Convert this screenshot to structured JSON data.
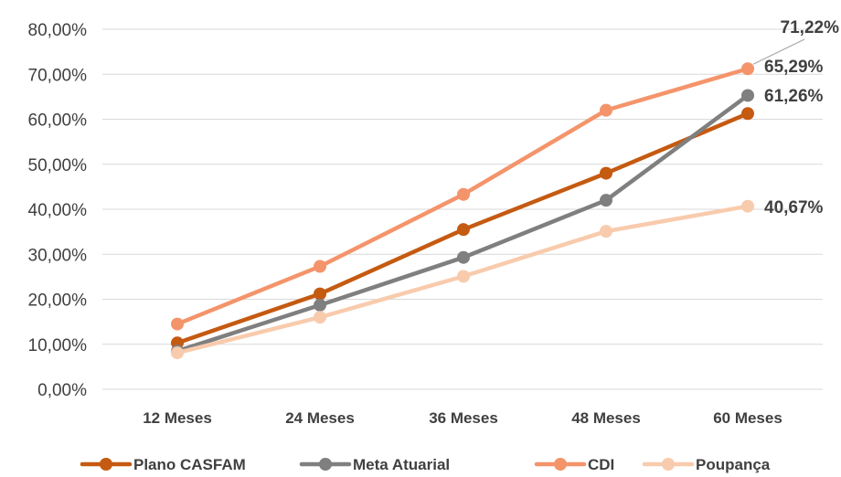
{
  "chart_data": {
    "type": "line",
    "categories": [
      "12 Meses",
      "24 Meses",
      "36 Meses",
      "48 Meses",
      "60 Meses"
    ],
    "ylim": [
      0,
      80
    ],
    "yticks": [
      "0,00%",
      "10,00%",
      "20,00%",
      "30,00%",
      "40,00%",
      "50,00%",
      "60,00%",
      "70,00%",
      "80,00%"
    ],
    "grid": true,
    "legend_position": "bottom",
    "series": [
      {
        "name": "Plano CASFAM",
        "color": "#c55a11",
        "values": [
          10.3,
          21.2,
          35.5,
          48.0,
          61.26
        ]
      },
      {
        "name": "Meta Atuarial",
        "color": "#7f7f7f",
        "values": [
          8.5,
          18.7,
          29.3,
          42.0,
          65.29
        ]
      },
      {
        "name": "CDI",
        "color": "#f4946b",
        "values": [
          14.5,
          27.3,
          43.3,
          62.0,
          71.22
        ]
      },
      {
        "name": "Poupança",
        "color": "#f8cbad",
        "values": [
          8.1,
          16.0,
          25.1,
          35.1,
          40.67
        ]
      }
    ],
    "data_labels": [
      {
        "series": "CDI",
        "text": "71,22%"
      },
      {
        "series": "Meta Atuarial",
        "text": "65,29%"
      },
      {
        "series": "Plano CASFAM",
        "text": "61,26%"
      },
      {
        "series": "Poupança",
        "text": "40,67%"
      }
    ]
  }
}
